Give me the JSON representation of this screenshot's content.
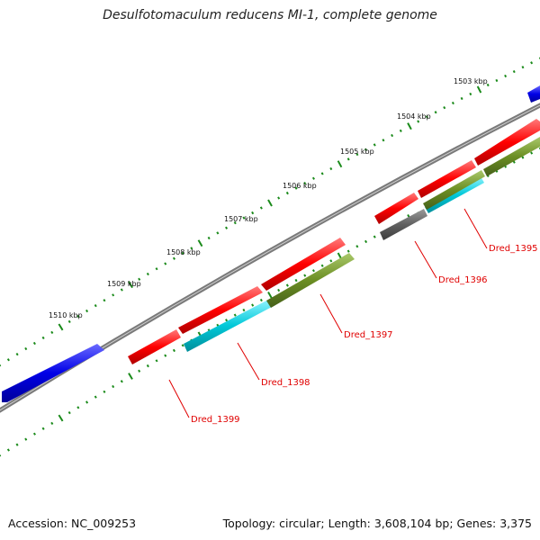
{
  "title": "Desulfotomaculum reducens MI-1, complete genome",
  "footer": {
    "accession": "Accession: NC_009253",
    "summary": "Topology: circular; Length: 3,608,104 bp; Genes: 3,375"
  },
  "scale_labels": [
    "1503 kbp",
    "1504 kbp",
    "1505 kbp",
    "1506 kbp",
    "1507 kbp",
    "1508 kbp",
    "1509 kbp",
    "1510 kbp"
  ],
  "gene_labels": [
    "Dred_1395",
    "Dred_1396",
    "Dred_1397",
    "Dred_1398",
    "Dred_1399"
  ],
  "colors": {
    "forward_cds": "#0000e6",
    "red_track": "#ff0000",
    "cyan_track": "#00c8d8",
    "olive_track": "#6b8e23",
    "gray_feature": "#606060",
    "backbone": "#7a7a7a",
    "tick": "#1a8a1a",
    "label": "#e00000"
  }
}
